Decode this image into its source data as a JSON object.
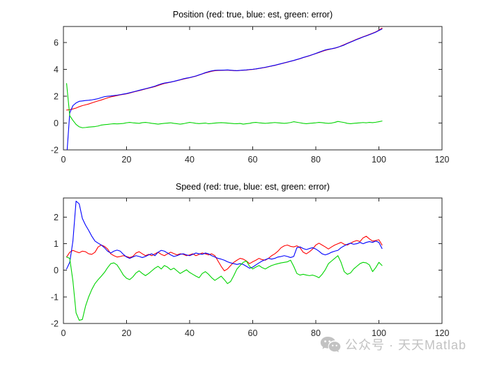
{
  "figure": {
    "background": "#ffffff"
  },
  "watermark": {
    "text": "公众号 · 天天Matlab",
    "icon": "wechat-icon",
    "color": "#c2c2c2"
  },
  "axis_style": {
    "frame_color": "#262626",
    "tick_label_color": "#262626",
    "tick_length": 5
  },
  "chart_data": [
    {
      "type": "line",
      "title": "Position (red: true, blue: est, green: error)",
      "xlabel": "",
      "ylabel": "",
      "xlim": [
        0,
        120
      ],
      "ylim": [
        -2,
        7.2
      ],
      "xticks": [
        0,
        20,
        40,
        60,
        80,
        100,
        120
      ],
      "yticks": [
        -2,
        0,
        2,
        4,
        6
      ],
      "grid": false,
      "legend": "none (colors described in title)",
      "x": {
        "start": 1,
        "step": 1,
        "count": 101
      },
      "series": [
        {
          "name": "true",
          "color": "#ff0000",
          "values": [
            0.97,
            1.0,
            1.05,
            1.12,
            1.22,
            1.3,
            1.36,
            1.42,
            1.5,
            1.58,
            1.65,
            1.72,
            1.8,
            1.88,
            1.95,
            2.0,
            2.05,
            2.1,
            2.14,
            2.18,
            2.24,
            2.3,
            2.36,
            2.42,
            2.48,
            2.54,
            2.6,
            2.66,
            2.72,
            2.8,
            2.88,
            2.95,
            3.0,
            3.05,
            3.1,
            3.16,
            3.22,
            3.28,
            3.33,
            3.38,
            3.44,
            3.5,
            3.58,
            3.66,
            3.74,
            3.8,
            3.86,
            3.9,
            3.92,
            3.93,
            3.94,
            3.95,
            3.93,
            3.91,
            3.9,
            3.92,
            3.94,
            3.95,
            3.98,
            4.0,
            4.03,
            4.07,
            4.11,
            4.15,
            4.2,
            4.25,
            4.3,
            4.36,
            4.42,
            4.48,
            4.54,
            4.6,
            4.66,
            4.73,
            4.8,
            4.88,
            4.95,
            5.02,
            5.1,
            5.18,
            5.26,
            5.34,
            5.42,
            5.48,
            5.53,
            5.58,
            5.65,
            5.75,
            5.85,
            5.95,
            6.05,
            6.15,
            6.25,
            6.34,
            6.43,
            6.52,
            6.61,
            6.7,
            6.8,
            6.92,
            7.08
          ]
        },
        {
          "name": "est",
          "color": "#0000ff",
          "values": [
            -2.6,
            0.75,
            1.3,
            1.5,
            1.62,
            1.65,
            1.68,
            1.7,
            1.73,
            1.77,
            1.82,
            1.9,
            1.97,
            2.0,
            2.02,
            2.05,
            2.08,
            2.12,
            2.16,
            2.2,
            2.26,
            2.32,
            2.38,
            2.44,
            2.5,
            2.56,
            2.62,
            2.68,
            2.75,
            2.84,
            2.92,
            2.98,
            3.02,
            3.06,
            3.11,
            3.17,
            3.23,
            3.3,
            3.35,
            3.39,
            3.45,
            3.51,
            3.59,
            3.67,
            3.76,
            3.83,
            3.89,
            3.93,
            3.94,
            3.94,
            3.95,
            3.96,
            3.94,
            3.92,
            3.91,
            3.93,
            3.95,
            3.96,
            3.99,
            4.01,
            4.04,
            4.08,
            4.12,
            4.16,
            4.21,
            4.26,
            4.31,
            4.37,
            4.43,
            4.49,
            4.55,
            4.61,
            4.67,
            4.74,
            4.81,
            4.89,
            4.96,
            5.03,
            5.11,
            5.19,
            5.28,
            5.37,
            5.45,
            5.5,
            5.54,
            5.59,
            5.66,
            5.73,
            5.82,
            5.93,
            6.03,
            6.13,
            6.23,
            6.32,
            6.42,
            6.5,
            6.59,
            6.68,
            6.78,
            6.9,
            7.02
          ]
        },
        {
          "name": "error",
          "color": "#00d400",
          "values": [
            2.95,
            0.55,
            0.2,
            -0.1,
            -0.28,
            -0.35,
            -0.33,
            -0.3,
            -0.28,
            -0.26,
            -0.22,
            -0.15,
            -0.12,
            -0.1,
            -0.07,
            -0.05,
            -0.06,
            -0.05,
            -0.03,
            0.02,
            0.05,
            0.02,
            0.0,
            -0.02,
            0.03,
            0.05,
            0.02,
            -0.02,
            -0.05,
            -0.08,
            -0.05,
            -0.02,
            0.0,
            0.02,
            -0.02,
            -0.05,
            -0.08,
            -0.05,
            0.0,
            0.05,
            0.02,
            -0.02,
            -0.04,
            -0.02,
            0.0,
            -0.05,
            -0.03,
            0.0,
            0.02,
            0.03,
            0.02,
            0.0,
            -0.02,
            -0.04,
            -0.05,
            -0.03,
            -0.08,
            -0.05,
            -0.02,
            0.03,
            0.05,
            0.02,
            0.0,
            -0.02,
            0.0,
            0.02,
            0.04,
            0.02,
            0.0,
            -0.02,
            0.0,
            0.04,
            0.1,
            0.06,
            0.02,
            -0.02,
            -0.05,
            -0.02,
            0.0,
            0.02,
            0.05,
            0.03,
            0.0,
            -0.02,
            0.0,
            0.05,
            0.12,
            0.08,
            0.04,
            -0.02,
            -0.05,
            -0.02,
            0.0,
            0.02,
            0.04,
            0.02,
            0.05,
            0.03,
            0.06,
            0.1,
            0.15
          ]
        }
      ]
    },
    {
      "type": "line",
      "title": "Speed (red: true, blue: est, green: error)",
      "xlabel": "",
      "ylabel": "",
      "xlim": [
        0,
        120
      ],
      "ylim": [
        -2,
        2.72
      ],
      "xticks": [
        0,
        20,
        40,
        60,
        80,
        100,
        120
      ],
      "yticks": [
        -2,
        -1,
        0,
        1,
        2
      ],
      "grid": false,
      "legend": "none (colors described in title)",
      "x": {
        "start": 1,
        "step": 1,
        "count": 101
      },
      "series": [
        {
          "name": "true",
          "color": "#ff0000",
          "values": [
            0.5,
            0.68,
            0.75,
            0.7,
            0.66,
            0.72,
            0.7,
            0.62,
            0.6,
            0.68,
            0.88,
            0.95,
            0.9,
            0.8,
            0.62,
            0.55,
            0.5,
            0.52,
            0.55,
            0.52,
            0.48,
            0.52,
            0.65,
            0.7,
            0.62,
            0.55,
            0.6,
            0.55,
            0.62,
            0.68,
            0.6,
            0.55,
            0.62,
            0.68,
            0.63,
            0.58,
            0.62,
            0.6,
            0.55,
            0.58,
            0.62,
            0.55,
            0.6,
            0.65,
            0.62,
            0.58,
            0.62,
            0.55,
            0.35,
            0.15,
            -0.02,
            0.05,
            0.18,
            0.3,
            0.38,
            0.45,
            0.42,
            0.35,
            0.25,
            0.32,
            0.38,
            0.45,
            0.4,
            0.38,
            0.45,
            0.55,
            0.62,
            0.72,
            0.85,
            0.92,
            0.95,
            0.9,
            0.88,
            0.92,
            0.85,
            0.68,
            0.62,
            0.7,
            0.8,
            0.95,
            1.02,
            0.95,
            0.88,
            0.8,
            0.88,
            0.95,
            1.0,
            1.05,
            0.98,
            0.95,
            1.02,
            1.08,
            1.12,
            1.08,
            1.22,
            1.28,
            1.18,
            1.1,
            1.12,
            1.15,
            0.95
          ]
        },
        {
          "name": "est",
          "color": "#0000ff",
          "values": [
            0.05,
            0.3,
            1.1,
            2.6,
            2.5,
            1.95,
            1.7,
            1.5,
            1.28,
            1.1,
            1.02,
            0.95,
            0.85,
            0.72,
            0.65,
            0.72,
            0.76,
            0.72,
            0.6,
            0.5,
            0.45,
            0.5,
            0.55,
            0.52,
            0.48,
            0.52,
            0.58,
            0.62,
            0.55,
            0.68,
            0.75,
            0.72,
            0.65,
            0.58,
            0.52,
            0.55,
            0.6,
            0.62,
            0.58,
            0.55,
            0.6,
            0.65,
            0.62,
            0.6,
            0.65,
            0.62,
            0.55,
            0.5,
            0.45,
            0.42,
            0.38,
            0.32,
            0.28,
            0.25,
            0.22,
            0.25,
            0.22,
            0.15,
            0.08,
            0.12,
            0.2,
            0.28,
            0.35,
            0.4,
            0.45,
            0.42,
            0.45,
            0.5,
            0.52,
            0.55,
            0.52,
            0.48,
            0.52,
            0.85,
            0.88,
            0.82,
            0.78,
            0.82,
            0.85,
            0.8,
            0.72,
            0.62,
            0.58,
            0.62,
            0.68,
            0.72,
            0.75,
            0.85,
            0.92,
            0.98,
            1.02,
            0.98,
            1.0,
            1.05,
            1.0,
            1.05,
            1.08,
            1.05,
            1.1,
            1.05,
            0.82
          ]
        },
        {
          "name": "error",
          "color": "#00d400",
          "values": [
            0.5,
            0.45,
            -0.4,
            -1.6,
            -1.88,
            -1.85,
            -1.35,
            -1.0,
            -0.72,
            -0.5,
            -0.35,
            -0.22,
            -0.08,
            0.1,
            0.25,
            0.28,
            0.2,
            0.02,
            -0.18,
            -0.3,
            -0.35,
            -0.25,
            -0.1,
            -0.02,
            -0.12,
            -0.2,
            -0.12,
            -0.02,
            0.08,
            0.15,
            0.05,
            0.18,
            0.12,
            0.02,
            0.08,
            -0.02,
            -0.12,
            -0.05,
            0.02,
            -0.08,
            -0.15,
            -0.22,
            -0.28,
            -0.12,
            -0.05,
            -0.15,
            -0.28,
            -0.38,
            -0.3,
            -0.22,
            -0.35,
            -0.5,
            -0.42,
            -0.2,
            0.05,
            0.18,
            0.3,
            0.35,
            0.15,
            0.05,
            0.12,
            0.18,
            0.1,
            0.05,
            0.12,
            0.18,
            0.22,
            0.25,
            0.28,
            0.3,
            0.32,
            0.38,
            0.15,
            -0.12,
            -0.18,
            -0.15,
            -0.18,
            -0.2,
            -0.18,
            -0.22,
            -0.28,
            -0.15,
            0.02,
            0.25,
            0.35,
            0.45,
            0.55,
            0.3,
            -0.05,
            -0.15,
            -0.1,
            0.05,
            0.15,
            0.25,
            0.3,
            0.28,
            0.2,
            -0.05,
            0.1,
            0.3,
            0.18
          ]
        }
      ]
    }
  ]
}
